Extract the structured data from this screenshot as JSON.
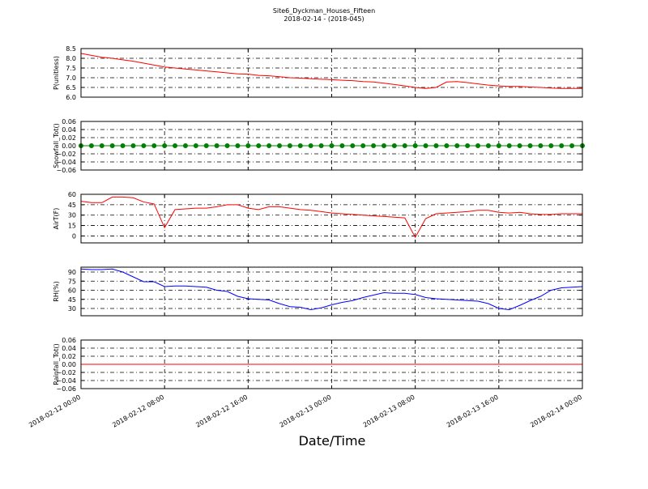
{
  "chart_data": [
    {
      "type": "line",
      "title": "Site6_Dyckman_Houses_Fifteen",
      "subtitle": "2018-02-14 - (2018-045)",
      "ylabel": "P(unitless)",
      "color": "#ff0000",
      "grid": true,
      "x": [
        "2018-02-12 00:00",
        "2018-02-12 01:00",
        "2018-02-12 02:00",
        "2018-02-12 03:00",
        "2018-02-12 04:00",
        "2018-02-12 05:00",
        "2018-02-12 06:00",
        "2018-02-12 07:00",
        "2018-02-12 08:00",
        "2018-02-12 09:00",
        "2018-02-12 10:00",
        "2018-02-12 11:00",
        "2018-02-12 12:00",
        "2018-02-12 13:00",
        "2018-02-12 14:00",
        "2018-02-12 15:00",
        "2018-02-12 16:00",
        "2018-02-12 17:00",
        "2018-02-12 18:00",
        "2018-02-12 19:00",
        "2018-02-12 20:00",
        "2018-02-12 21:00",
        "2018-02-12 22:00",
        "2018-02-12 23:00",
        "2018-02-13 00:00",
        "2018-02-13 01:00",
        "2018-02-13 02:00",
        "2018-02-13 03:00",
        "2018-02-13 04:00",
        "2018-02-13 05:00",
        "2018-02-13 06:00",
        "2018-02-13 07:00",
        "2018-02-13 08:00",
        "2018-02-13 09:00",
        "2018-02-13 10:00",
        "2018-02-13 11:00",
        "2018-02-13 12:00",
        "2018-02-13 13:00",
        "2018-02-13 14:00",
        "2018-02-13 15:00",
        "2018-02-13 16:00",
        "2018-02-13 17:00",
        "2018-02-13 18:00",
        "2018-02-13 19:00",
        "2018-02-13 20:00",
        "2018-02-13 21:00",
        "2018-02-13 22:00",
        "2018-02-13 23:00",
        "2018-02-14 00:00"
      ],
      "values": [
        8.25,
        8.15,
        8.05,
        8.0,
        7.92,
        7.85,
        7.75,
        7.65,
        7.55,
        7.5,
        7.45,
        7.4,
        7.35,
        7.3,
        7.25,
        7.2,
        7.18,
        7.12,
        7.1,
        7.05,
        7.0,
        6.98,
        6.95,
        6.92,
        6.9,
        6.87,
        6.85,
        6.8,
        6.78,
        6.72,
        6.65,
        6.58,
        6.5,
        6.45,
        6.5,
        6.78,
        6.8,
        6.75,
        6.68,
        6.62,
        6.58,
        6.55,
        6.55,
        6.52,
        6.5,
        6.47,
        6.45,
        6.45,
        6.45
      ],
      "xlim": [
        "2018-02-12 00:00",
        "2018-02-14 00:00"
      ],
      "xticks": [
        "2018-02-12 00:00",
        "2018-02-12 08:00",
        "2018-02-12 16:00",
        "2018-02-13 00:00",
        "2018-02-13 08:00",
        "2018-02-13 16:00",
        "2018-02-14 00:00"
      ],
      "ylim": [
        6.0,
        8.5
      ],
      "yticks": [
        {
          "value": 6.0,
          "label": "6.0"
        },
        6.5,
        {
          "value": 7.0,
          "label": "7.0"
        },
        7.5,
        {
          "value": 8.0,
          "label": "8.0"
        },
        8.5
      ]
    },
    {
      "type": "line",
      "ylabel": "Snowfall_Tot()",
      "color": "#008000",
      "marker": "o",
      "grid": true,
      "x": [
        "2018-02-12 00:00",
        "2018-02-12 01:00",
        "2018-02-12 02:00",
        "2018-02-12 03:00",
        "2018-02-12 04:00",
        "2018-02-12 05:00",
        "2018-02-12 06:00",
        "2018-02-12 07:00",
        "2018-02-12 08:00",
        "2018-02-12 09:00",
        "2018-02-12 10:00",
        "2018-02-12 11:00",
        "2018-02-12 12:00",
        "2018-02-12 13:00",
        "2018-02-12 14:00",
        "2018-02-12 15:00",
        "2018-02-12 16:00",
        "2018-02-12 17:00",
        "2018-02-12 18:00",
        "2018-02-12 19:00",
        "2018-02-12 20:00",
        "2018-02-12 21:00",
        "2018-02-12 22:00",
        "2018-02-12 23:00",
        "2018-02-13 00:00",
        "2018-02-13 01:00",
        "2018-02-13 02:00",
        "2018-02-13 03:00",
        "2018-02-13 04:00",
        "2018-02-13 05:00",
        "2018-02-13 06:00",
        "2018-02-13 07:00",
        "2018-02-13 08:00",
        "2018-02-13 09:00",
        "2018-02-13 10:00",
        "2018-02-13 11:00",
        "2018-02-13 12:00",
        "2018-02-13 13:00",
        "2018-02-13 14:00",
        "2018-02-13 15:00",
        "2018-02-13 16:00",
        "2018-02-13 17:00",
        "2018-02-13 18:00",
        "2018-02-13 19:00",
        "2018-02-13 20:00",
        "2018-02-13 21:00",
        "2018-02-13 22:00",
        "2018-02-13 23:00",
        "2018-02-14 00:00"
      ],
      "values": [
        0,
        0,
        0,
        0,
        0,
        0,
        0,
        0,
        0,
        0,
        0,
        0,
        0,
        0,
        0,
        0,
        0,
        0,
        0,
        0,
        0,
        0,
        0,
        0,
        0,
        0,
        0,
        0,
        0,
        0,
        0,
        0,
        0,
        0,
        0,
        0,
        0,
        0,
        0,
        0,
        0,
        0,
        0,
        0,
        0,
        0,
        0,
        0,
        0
      ],
      "xlim": [
        "2018-02-12 00:00",
        "2018-02-14 00:00"
      ],
      "xticks": [
        "2018-02-12 00:00",
        "2018-02-12 08:00",
        "2018-02-12 16:00",
        "2018-02-13 00:00",
        "2018-02-13 08:00",
        "2018-02-13 16:00",
        "2018-02-14 00:00"
      ],
      "ylim": [
        -0.06,
        0.06
      ],
      "yticks": [
        {
          "value": 0.06,
          "label": "0.06"
        },
        0.04,
        0.02,
        {
          "value": 0,
          "label": "0.00"
        },
        {
          "value": -0.02,
          "label": "−0.02"
        },
        {
          "value": -0.04,
          "label": "−0.04"
        },
        {
          "value": -0.06,
          "label": "−0.06"
        }
      ]
    },
    {
      "type": "line",
      "ylabel": "AirT(F)",
      "color": "#ff0000",
      "grid": true,
      "x": [
        "2018-02-12 00:00",
        "2018-02-12 01:00",
        "2018-02-12 02:00",
        "2018-02-12 03:00",
        "2018-02-12 04:00",
        "2018-02-12 05:00",
        "2018-02-12 06:00",
        "2018-02-12 07:00",
        "2018-02-12 08:00",
        "2018-02-12 09:00",
        "2018-02-12 10:00",
        "2018-02-12 11:00",
        "2018-02-12 12:00",
        "2018-02-12 13:00",
        "2018-02-12 14:00",
        "2018-02-12 15:00",
        "2018-02-12 16:00",
        "2018-02-12 17:00",
        "2018-02-12 18:00",
        "2018-02-12 19:00",
        "2018-02-12 20:00",
        "2018-02-12 21:00",
        "2018-02-12 22:00",
        "2018-02-12 23:00",
        "2018-02-13 00:00",
        "2018-02-13 01:00",
        "2018-02-13 02:00",
        "2018-02-13 03:00",
        "2018-02-13 04:00",
        "2018-02-13 05:00",
        "2018-02-13 06:00",
        "2018-02-13 07:00",
        "2018-02-13 08:00",
        "2018-02-13 09:00",
        "2018-02-13 10:00",
        "2018-02-13 11:00",
        "2018-02-13 12:00",
        "2018-02-13 13:00",
        "2018-02-13 14:00",
        "2018-02-13 15:00",
        "2018-02-13 16:00",
        "2018-02-13 17:00",
        "2018-02-13 18:00",
        "2018-02-13 19:00",
        "2018-02-13 20:00",
        "2018-02-13 21:00",
        "2018-02-13 22:00",
        "2018-02-13 23:00",
        "2018-02-14 00:00"
      ],
      "values": [
        50,
        48,
        48,
        56,
        56,
        55,
        49,
        46,
        12,
        38,
        39,
        40,
        40,
        42,
        45,
        45,
        40,
        38,
        42,
        42,
        40,
        38,
        37,
        35,
        33,
        32,
        31,
        30,
        29,
        28,
        27,
        26,
        -2,
        25,
        32,
        33,
        34,
        35,
        37,
        37,
        34,
        33,
        34,
        32,
        31,
        31,
        32,
        32,
        32
      ],
      "xlim": [
        "2018-02-12 00:00",
        "2018-02-14 00:00"
      ],
      "xticks": [
        "2018-02-12 00:00",
        "2018-02-12 08:00",
        "2018-02-12 16:00",
        "2018-02-13 00:00",
        "2018-02-13 08:00",
        "2018-02-13 16:00",
        "2018-02-14 00:00"
      ],
      "ylim": [
        -10,
        60
      ],
      "yticks": [
        0,
        15,
        30,
        45,
        60
      ]
    },
    {
      "type": "line",
      "ylabel": "RH(%)",
      "color": "#0000ff",
      "grid": true,
      "x": [
        "2018-02-12 00:00",
        "2018-02-12 01:00",
        "2018-02-12 02:00",
        "2018-02-12 03:00",
        "2018-02-12 04:00",
        "2018-02-12 05:00",
        "2018-02-12 06:00",
        "2018-02-12 07:00",
        "2018-02-12 08:00",
        "2018-02-12 09:00",
        "2018-02-12 10:00",
        "2018-02-12 11:00",
        "2018-02-12 12:00",
        "2018-02-12 13:00",
        "2018-02-12 14:00",
        "2018-02-12 15:00",
        "2018-02-12 16:00",
        "2018-02-12 17:00",
        "2018-02-12 18:00",
        "2018-02-12 19:00",
        "2018-02-12 20:00",
        "2018-02-12 21:00",
        "2018-02-12 22:00",
        "2018-02-12 23:00",
        "2018-02-13 00:00",
        "2018-02-13 01:00",
        "2018-02-13 02:00",
        "2018-02-13 03:00",
        "2018-02-13 04:00",
        "2018-02-13 05:00",
        "2018-02-13 06:00",
        "2018-02-13 07:00",
        "2018-02-13 08:00",
        "2018-02-13 09:00",
        "2018-02-13 10:00",
        "2018-02-13 11:00",
        "2018-02-13 12:00",
        "2018-02-13 13:00",
        "2018-02-13 14:00",
        "2018-02-13 15:00",
        "2018-02-13 16:00",
        "2018-02-13 17:00",
        "2018-02-13 18:00",
        "2018-02-13 19:00",
        "2018-02-13 20:00",
        "2018-02-13 21:00",
        "2018-02-13 22:00",
        "2018-02-13 23:00",
        "2018-02-14 00:00"
      ],
      "values": [
        95,
        94,
        94,
        95,
        90,
        82,
        74,
        74,
        66,
        67,
        67,
        66,
        65,
        60,
        58,
        50,
        46,
        45,
        44,
        38,
        33,
        32,
        28,
        31,
        36,
        40,
        43,
        48,
        52,
        56,
        55,
        55,
        53,
        48,
        46,
        45,
        44,
        43,
        42,
        38,
        30,
        28,
        35,
        43,
        50,
        60,
        64,
        65,
        66
      ],
      "xlim": [
        "2018-02-12 00:00",
        "2018-02-14 00:00"
      ],
      "xticks": [
        "2018-02-12 00:00",
        "2018-02-12 08:00",
        "2018-02-12 16:00",
        "2018-02-13 00:00",
        "2018-02-13 08:00",
        "2018-02-13 16:00",
        "2018-02-14 00:00"
      ],
      "ylim": [
        18,
        98
      ],
      "yticks": [
        30,
        45,
        60,
        75,
        90
      ]
    },
    {
      "type": "line",
      "ylabel": "Rainfall_Tot()",
      "xlabel": "Date/Time",
      "color": "#ff0000",
      "grid": true,
      "x": [
        "2018-02-12 00:00",
        "2018-02-12 01:00",
        "2018-02-12 02:00",
        "2018-02-12 03:00",
        "2018-02-12 04:00",
        "2018-02-12 05:00",
        "2018-02-12 06:00",
        "2018-02-12 07:00",
        "2018-02-12 08:00",
        "2018-02-12 09:00",
        "2018-02-12 10:00",
        "2018-02-12 11:00",
        "2018-02-12 12:00",
        "2018-02-12 13:00",
        "2018-02-12 14:00",
        "2018-02-12 15:00",
        "2018-02-12 16:00",
        "2018-02-12 17:00",
        "2018-02-12 18:00",
        "2018-02-12 19:00",
        "2018-02-12 20:00",
        "2018-02-12 21:00",
        "2018-02-12 22:00",
        "2018-02-12 23:00",
        "2018-02-13 00:00",
        "2018-02-13 01:00",
        "2018-02-13 02:00",
        "2018-02-13 03:00",
        "2018-02-13 04:00",
        "2018-02-13 05:00",
        "2018-02-13 06:00",
        "2018-02-13 07:00",
        "2018-02-13 08:00",
        "2018-02-13 09:00",
        "2018-02-13 10:00",
        "2018-02-13 11:00",
        "2018-02-13 12:00",
        "2018-02-13 13:00",
        "2018-02-13 14:00",
        "2018-02-13 15:00",
        "2018-02-13 16:00",
        "2018-02-13 17:00",
        "2018-02-13 18:00",
        "2018-02-13 19:00",
        "2018-02-13 20:00",
        "2018-02-13 21:00",
        "2018-02-13 22:00",
        "2018-02-13 23:00",
        "2018-02-14 00:00"
      ],
      "values": [
        0,
        0,
        0,
        0,
        0,
        0,
        0,
        0,
        0,
        0,
        0,
        0,
        0,
        0,
        0,
        0,
        0,
        0,
        0,
        0,
        0,
        0,
        0,
        0,
        0,
        0,
        0,
        0,
        0,
        0,
        0,
        0,
        0,
        0,
        0,
        0,
        0,
        0,
        0,
        0,
        0,
        0,
        0,
        0,
        0,
        0,
        0,
        0,
        0
      ],
      "xlim": [
        "2018-02-12 00:00",
        "2018-02-14 00:00"
      ],
      "xticks": [
        "2018-02-12 00:00",
        "2018-02-12 08:00",
        "2018-02-12 16:00",
        "2018-02-13 00:00",
        "2018-02-13 08:00",
        "2018-02-13 16:00",
        "2018-02-14 00:00"
      ],
      "ylim": [
        -0.06,
        0.06
      ],
      "yticks": [
        {
          "value": 0.06,
          "label": "0.06"
        },
        0.04,
        0.02,
        {
          "value": 0,
          "label": "0.00"
        },
        {
          "value": -0.02,
          "label": "−0.02"
        },
        {
          "value": -0.04,
          "label": "−0.04"
        },
        {
          "value": -0.06,
          "label": "−0.06"
        }
      ]
    }
  ]
}
